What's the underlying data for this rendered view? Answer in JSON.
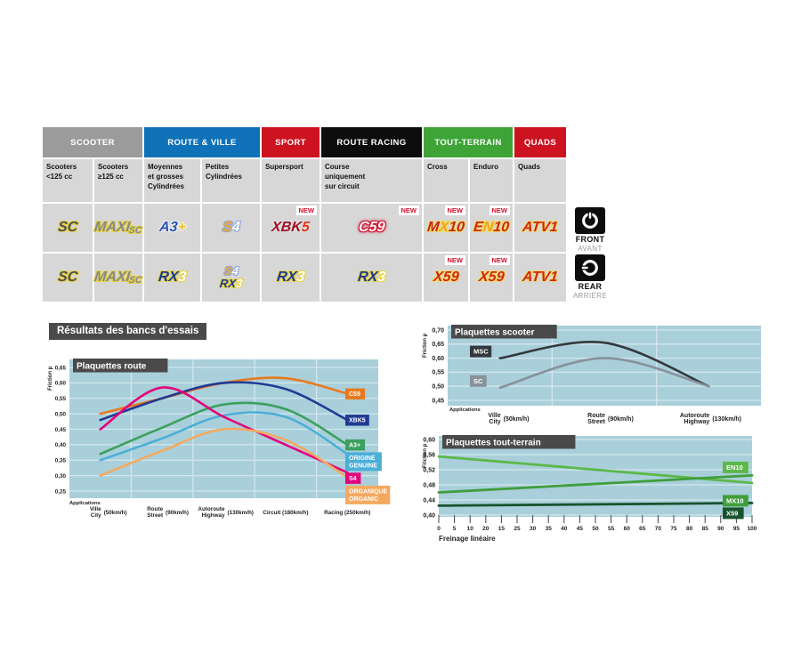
{
  "theme": {
    "plot_bg": "#a9cfda",
    "grid": "#d3e7ed",
    "title_bg": "#4a4a4a",
    "table_cell_bg": "#d7d7d7",
    "new_color": "#d2112b"
  },
  "new_badge": "NEW",
  "header_table": {
    "categories": [
      {
        "label": "SCOOTER",
        "color": "#9b9b9b",
        "span": 2
      },
      {
        "label": "ROUTE & VILLE",
        "color": "#0f72b8",
        "span": 2
      },
      {
        "label": "SPORT",
        "color": "#cd1320",
        "span": 1
      },
      {
        "label": "ROUTE RACING",
        "color": "#0d0d0d",
        "span": 1
      },
      {
        "label": "TOUT-TERRAIN",
        "color": "#3ea437",
        "span": 2
      },
      {
        "label": "QUADS",
        "color": "#cd1320",
        "span": 1
      }
    ],
    "subheaders": [
      [
        "Scooters",
        "<125 cc"
      ],
      [
        "Scooters",
        "≥125 cc"
      ],
      [
        "Moyennes",
        "et grosses",
        "Cylindrées"
      ],
      [
        "Petites",
        "Cylindrées"
      ],
      [
        "Supersport"
      ],
      [
        "Course",
        "uniquement",
        "sur circuit"
      ],
      [
        "Cross"
      ],
      [
        "Enduro"
      ],
      [
        "Quads"
      ]
    ],
    "rows": [
      {
        "name": "front",
        "cells": [
          {
            "logos": [
              {
                "parts": [
                  {
                    "t": "SC",
                    "c": "#4b5055"
                  }
                ],
                "outline": "#e8d24a"
              }
            ]
          },
          {
            "logos": [
              {
                "parts": [
                  {
                    "t": "MAXI",
                    "c": "#83898e"
                  },
                  {
                    "t": "SC",
                    "c": "#83898e",
                    "small": true
                  }
                ],
                "outline": "#e8d24a"
              }
            ]
          },
          {
            "logos": [
              {
                "parts": [
                  {
                    "t": "A3",
                    "c": "#2d52b0"
                  },
                  {
                    "t": "+",
                    "c": "#e8c51e"
                  }
                ],
                "outline": "#f2f2f2"
              }
            ]
          },
          {
            "logos": [
              {
                "parts": [
                  {
                    "t": "S",
                    "c": "#f7a823"
                  },
                  {
                    "t": "4",
                    "c": "#ffffff"
                  }
                ],
                "outline": "#8fa8d8"
              }
            ]
          },
          {
            "new": true,
            "logos": [
              {
                "parts": [
                  {
                    "t": "XBK",
                    "c": "#a01325"
                  },
                  {
                    "t": "5",
                    "c": "#e33414"
                  }
                ],
                "outline": "#e0e0e0"
              }
            ]
          },
          {
            "new": true,
            "logos": [
              {
                "parts": [
                  {
                    "t": "C59",
                    "c": "#ffffff"
                  }
                ],
                "outline": "#d2112b",
                "glow": true
              }
            ]
          },
          {
            "new": true,
            "logos": [
              {
                "parts": [
                  {
                    "t": "M",
                    "c": "#c3231c"
                  },
                  {
                    "t": "X",
                    "c": "#f2a51c"
                  },
                  {
                    "t": "10",
                    "c": "#c3231c"
                  }
                ],
                "outline": "#f3dc6a"
              }
            ]
          },
          {
            "new": true,
            "logos": [
              {
                "parts": [
                  {
                    "t": "E",
                    "c": "#cf2418"
                  },
                  {
                    "t": "N",
                    "c": "#f2a51c"
                  },
                  {
                    "t": "10",
                    "c": "#cf2418"
                  }
                ],
                "outline": "#f3dc6a"
              }
            ]
          },
          {
            "logos": [
              {
                "parts": [
                  {
                    "t": "ATV1",
                    "c": "#cf2418"
                  }
                ],
                "outline": "#f3dc6a"
              }
            ]
          }
        ]
      },
      {
        "name": "rear",
        "cells": [
          {
            "logos": [
              {
                "parts": [
                  {
                    "t": "SC",
                    "c": "#4b5055"
                  }
                ],
                "outline": "#e8d24a"
              }
            ]
          },
          {
            "logos": [
              {
                "parts": [
                  {
                    "t": "MAXI",
                    "c": "#83898e"
                  },
                  {
                    "t": "SC",
                    "c": "#83898e",
                    "small": true
                  }
                ],
                "outline": "#e8d24a"
              }
            ]
          },
          {
            "logos": [
              {
                "parts": [
                  {
                    "t": "RX",
                    "c": "#1a3a92"
                  },
                  {
                    "t": "3",
                    "c": "#ffffff"
                  }
                ],
                "outline": "#e8d24a"
              }
            ]
          },
          {
            "logos": [
              {
                "parts": [
                  {
                    "t": "S",
                    "c": "#f7a823"
                  },
                  {
                    "t": "4",
                    "c": "#ffffff"
                  }
                ],
                "outline": "#8fa8d8"
              },
              {
                "parts": [
                  {
                    "t": "RX",
                    "c": "#1a3a92"
                  },
                  {
                    "t": "3",
                    "c": "#ffffff"
                  }
                ],
                "outline": "#e8d24a"
              }
            ]
          },
          {
            "logos": [
              {
                "parts": [
                  {
                    "t": "RX",
                    "c": "#1a3a92"
                  },
                  {
                    "t": "3",
                    "c": "#ffffff"
                  }
                ],
                "outline": "#e8d24a"
              }
            ]
          },
          {
            "logos": [
              {
                "parts": [
                  {
                    "t": "RX",
                    "c": "#1a3a92"
                  },
                  {
                    "t": "3",
                    "c": "#ffffff"
                  }
                ],
                "outline": "#e8d24a"
              }
            ]
          },
          {
            "new": true,
            "logos": [
              {
                "parts": [
                  {
                    "t": "X59",
                    "c": "#cf2418"
                  }
                ],
                "outline": "#f3dc6a"
              }
            ]
          },
          {
            "new": true,
            "logos": [
              {
                "parts": [
                  {
                    "t": "X59",
                    "c": "#cf2418"
                  }
                ],
                "outline": "#f3dc6a"
              }
            ]
          },
          {
            "logos": [
              {
                "parts": [
                  {
                    "t": "ATV1",
                    "c": "#cf2418"
                  }
                ],
                "outline": "#f3dc6a"
              }
            ]
          }
        ]
      }
    ]
  },
  "position_icons": {
    "front": {
      "label": "FRONT",
      "sublabel": "AVANT"
    },
    "rear": {
      "label": "REAR",
      "sublabel": "ARRIÈRE"
    }
  },
  "section_title": "Résultats des bancs d'essais",
  "chart_data": [
    {
      "id": "route",
      "type": "line",
      "title": "Plaquettes route",
      "ylabel": "Friction µ",
      "xaxis_note": "Applications",
      "ylim": [
        0.25,
        0.65
      ],
      "ytick_values": [
        0.65,
        0.6,
        0.55,
        0.5,
        0.45,
        0.4,
        0.35,
        0.3,
        0.25
      ],
      "ytick_labels": [
        "0,65",
        "0,60",
        "0,55",
        "0,50",
        "0,45",
        "0,40",
        "0,35",
        "0,30",
        "0,25"
      ],
      "categories": [
        {
          "line1": "Ville",
          "line2": "City",
          "speed": "(50km/h)"
        },
        {
          "line1": "Route",
          "line2": "Street",
          "speed": "(90km/h)"
        },
        {
          "line1": "Autoroute",
          "line2": "Highway",
          "speed": "(130km/h)"
        },
        {
          "line1": "Circuit",
          "speed": "(180km/h)"
        },
        {
          "line1": "Racing",
          "speed": "(250km/h)"
        }
      ],
      "legend_position": "right",
      "grid": true,
      "series": [
        {
          "name": "C59",
          "color": "#e87a1e",
          "values": [
            0.5,
            0.55,
            0.6,
            0.615,
            0.565
          ],
          "label_lines": [
            "C59"
          ]
        },
        {
          "name": "XBK5",
          "color": "#1f3a94",
          "values": [
            0.48,
            0.55,
            0.6,
            0.58,
            0.48
          ],
          "label_lines": [
            "XBK5"
          ]
        },
        {
          "name": "A3+",
          "color": "#3ca05e",
          "values": [
            0.37,
            0.455,
            0.53,
            0.515,
            0.4
          ],
          "label_lines": [
            "A3+"
          ]
        },
        {
          "name": "ORIGINE GENUINE",
          "color": "#4bafd8",
          "values": [
            0.35,
            0.42,
            0.495,
            0.49,
            0.37
          ],
          "label_lines": [
            "ORIGINE",
            "GENUINE"
          ]
        },
        {
          "name": "S4",
          "color": "#e3017c",
          "values": [
            0.45,
            0.585,
            0.49,
            0.4,
            0.31
          ],
          "label_lines": [
            "S4"
          ]
        },
        {
          "name": "ORGANIQUE ORGANIC",
          "color": "#f4a95e",
          "values": [
            0.3,
            0.38,
            0.45,
            0.415,
            0.295
          ],
          "label_lines": [
            "ORGANIQUE",
            "ORGANIC"
          ]
        }
      ]
    },
    {
      "id": "scooter",
      "type": "line",
      "title": "Plaquettes scooter",
      "ylabel": "Friction µ",
      "xaxis_note": "Applications",
      "ylim": [
        0.45,
        0.7
      ],
      "ytick_values": [
        0.7,
        0.65,
        0.6,
        0.55,
        0.5,
        0.45
      ],
      "ytick_labels": [
        "0,70",
        "0,65",
        "0,60",
        "0,55",
        "0,50",
        "0,45"
      ],
      "categories": [
        {
          "line1": "Ville",
          "line2": "City",
          "speed": "(50km/h)"
        },
        {
          "line1": "Route",
          "line2": "Street",
          "speed": "(90km/h)"
        },
        {
          "line1": "Autoroute",
          "line2": "Highway",
          "speed": "(130km/h)"
        }
      ],
      "legend_position": "left",
      "grid": true,
      "series": [
        {
          "name": "MSC",
          "color": "#33383d",
          "values": [
            0.6,
            0.655,
            0.5
          ],
          "label_lines": [
            "MSC"
          ]
        },
        {
          "name": "SC",
          "color": "#87929a",
          "values": [
            0.495,
            0.6,
            0.5
          ],
          "label_lines": [
            "SC"
          ]
        }
      ]
    },
    {
      "id": "tout-terrain",
      "type": "line",
      "title": "Plaquettes tout-terrain",
      "ylabel": "Friction µ",
      "xlabel": "Freinage linéaire",
      "ylim": [
        0.4,
        0.6
      ],
      "ytick_values": [
        0.6,
        0.56,
        0.52,
        0.48,
        0.44,
        0.4
      ],
      "ytick_labels": [
        "0,60",
        "0,56",
        "0,52",
        "0,48",
        "0,44",
        "0,40"
      ],
      "xlim": [
        0,
        100
      ],
      "x": [
        0,
        100
      ],
      "xtick_labels": [
        "0",
        "5",
        "10",
        "20",
        "15",
        "25",
        "30",
        "35",
        "40",
        "45",
        "50",
        "55",
        "60",
        "65",
        "70",
        "75",
        "80",
        "85",
        "90",
        "95",
        "100"
      ],
      "legend_position": "right",
      "grid": true,
      "series": [
        {
          "name": "EN10",
          "color": "#5cb848",
          "values": [
            0.555,
            0.485
          ],
          "label_lines": [
            "EN10"
          ]
        },
        {
          "name": "MX10",
          "color": "#3f9e3c",
          "values": [
            0.46,
            0.505
          ],
          "label_lines": [
            "MX10"
          ]
        },
        {
          "name": "X59",
          "color": "#17532e",
          "values": [
            0.425,
            0.432
          ],
          "label_lines": [
            "X59"
          ]
        }
      ]
    }
  ]
}
